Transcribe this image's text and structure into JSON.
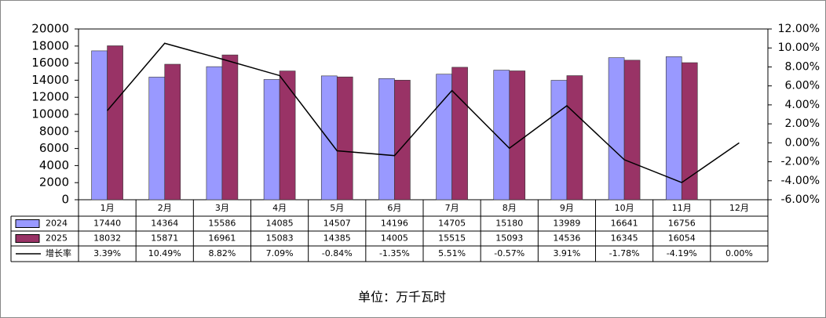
{
  "chart_data": {
    "type": "bar",
    "categories": [
      "1月",
      "2月",
      "3月",
      "4月",
      "5月",
      "6月",
      "7月",
      "8月",
      "9月",
      "10月",
      "11月",
      "12月"
    ],
    "series": [
      {
        "name": "2024",
        "color": "#9999ff",
        "values": [
          17440,
          14364,
          15586,
          14085,
          14507,
          14196,
          14705,
          15180,
          13989,
          16641,
          16756,
          null
        ]
      },
      {
        "name": "2025",
        "color": "#993366",
        "values": [
          18032,
          15871,
          16961,
          15083,
          14385,
          14005,
          15515,
          15093,
          14536,
          16345,
          16054,
          null
        ]
      },
      {
        "name": "增长率",
        "type": "line",
        "axis": "y2",
        "color": "#000000",
        "values": [
          3.39,
          10.49,
          8.82,
          7.09,
          -0.84,
          -1.35,
          5.51,
          -0.57,
          3.91,
          -1.78,
          -4.19,
          0
        ],
        "value_labels": [
          "3.39%",
          "10.49%",
          "8.82%",
          "7.09%",
          "-0.84%",
          "-1.35%",
          "5.51%",
          "-0.57%",
          "3.91%",
          "-1.78%",
          "-4.19%",
          "0.00%"
        ]
      }
    ],
    "ylim": [
      0,
      20000
    ],
    "yticks": [
      0,
      2000,
      4000,
      6000,
      8000,
      10000,
      12000,
      14000,
      16000,
      18000,
      20000
    ],
    "y2lim": [
      -6,
      12
    ],
    "y2ticks": [
      {
        "value": -6,
        "label": "-6.00%"
      },
      {
        "value": -4,
        "label": "-4.00%"
      },
      {
        "value": -2,
        "label": "-2.00%"
      },
      {
        "value": 0,
        "label": "0.00%"
      },
      {
        "value": 2,
        "label": "2.00%"
      },
      {
        "value": 4,
        "label": "4.00%"
      },
      {
        "value": 6,
        "label": "6.00%"
      },
      {
        "value": 8,
        "label": "8.00%"
      },
      {
        "value": 10,
        "label": "10.00%"
      },
      {
        "value": 12,
        "label": "12.00%"
      }
    ],
    "grid": false,
    "unit_note": "单位：万千瓦时"
  }
}
